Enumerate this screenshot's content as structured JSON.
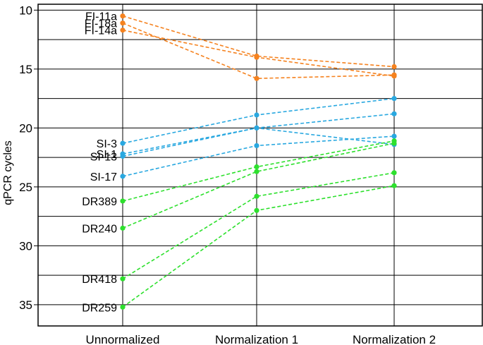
{
  "chart_data": {
    "type": "line",
    "title": "",
    "xlabel": "",
    "ylabel": "qPCR cycles",
    "y_inverted": true,
    "ylim": [
      9.5,
      36.8
    ],
    "yticks": [
      "10",
      "15",
      "20",
      "25",
      "30",
      "35"
    ],
    "categories": [
      "Unnormalized",
      "Normalization 1",
      "Normalization 2"
    ],
    "grid": "horizontal every 2.5 cycles, vertical at each category",
    "colors": {
      "fi": "#f5821f",
      "si": "#29a8e0",
      "dr": "#2de02d"
    },
    "series": [
      {
        "name": "FI-11a",
        "group": "fi",
        "values": [
          10.5,
          13.9,
          14.8
        ]
      },
      {
        "name": "FI-18a",
        "group": "fi",
        "values": [
          11.1,
          15.8,
          15.5
        ]
      },
      {
        "name": "FI-14a",
        "group": "fi",
        "values": [
          11.7,
          14.0,
          15.6
        ]
      },
      {
        "name": "SI-3",
        "group": "si",
        "values": [
          21.3,
          18.9,
          17.5
        ]
      },
      {
        "name": "SI-1",
        "group": "si",
        "values": [
          22.2,
          20.0,
          18.8
        ]
      },
      {
        "name": "SI-13",
        "group": "si",
        "values": [
          22.4,
          20.0,
          21.4
        ]
      },
      {
        "name": "SI-17",
        "group": "si",
        "values": [
          24.1,
          21.5,
          20.7
        ]
      },
      {
        "name": "DR389",
        "group": "dr",
        "values": [
          26.2,
          23.3,
          21.1
        ]
      },
      {
        "name": "DR240",
        "group": "dr",
        "values": [
          28.5,
          23.7,
          21.3
        ]
      },
      {
        "name": "DR418",
        "group": "dr",
        "values": [
          32.8,
          25.8,
          23.8
        ]
      },
      {
        "name": "DR259",
        "group": "dr",
        "values": [
          35.2,
          27.0,
          24.9
        ]
      }
    ]
  }
}
